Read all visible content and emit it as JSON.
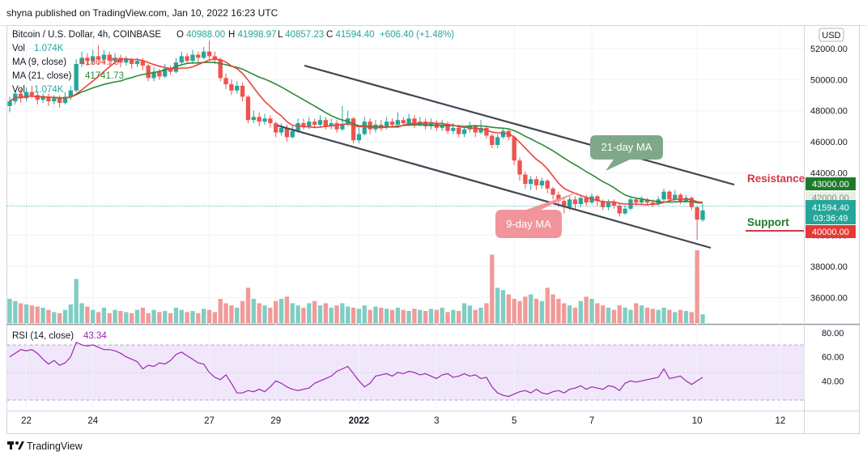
{
  "header": {
    "published": "shyna published on TradingView.com, Jan 10, 2022 16:23 UTC"
  },
  "legend": {
    "symbol": "Bitcoin / U.S. Dollar, 4h, COINBASE",
    "o_label": "O",
    "o_value": "40988.00",
    "h_label": "H",
    "h_value": "41998.97",
    "l_label": "L",
    "l_value": "40857.23",
    "c_label": "C",
    "c_value": "41594.40",
    "change": "+606.40 (+1.48%)",
    "vol_label": "Vol",
    "vol_value": "1.074K",
    "ma9_label": "MA (9, close)",
    "ma9_value": "41804.70",
    "ma21_label": "MA (21, close)",
    "ma21_value": "41741.73",
    "vol2_label": "Vol",
    "vol2_value": "1.074K"
  },
  "currency_button": "USD",
  "annotations": {
    "ma21": "21-day MA",
    "ma9": "9-day MA",
    "resistance": "Resistance",
    "support": "Support"
  },
  "price_tags": {
    "resistance": "43000.00",
    "ma_tag": "42000.00",
    "last_price": "41594.40",
    "countdown": "03:36:49",
    "support": "40000.00"
  },
  "rsi_legend": {
    "label": "RSI (14, close)",
    "value": "43.34"
  },
  "footer": {
    "brand": "TradingView"
  },
  "colors": {
    "up": "#26a69a",
    "down": "#ef5350",
    "ma9": "#e8453c",
    "ma21": "#2e8b3a",
    "rsi": "#9c27b0",
    "rsi_band": "#f1e7fb",
    "support_text": "#1e7a2b",
    "resistance_text": "#d23a4a"
  },
  "chart_data": {
    "type": "candlestick",
    "timeframe": "4h",
    "x_ticks": [
      "22",
      "24",
      "27",
      "29",
      "2022",
      "3",
      "5",
      "7",
      "10",
      "12"
    ],
    "y_ticks": [
      36000,
      38000,
      40000,
      42000,
      44000,
      46000,
      48000,
      50000,
      52000
    ],
    "ylim": [
      34300,
      53500
    ],
    "candles": [
      {
        "o": 48300,
        "c": 48600,
        "h": 48900,
        "l": 47900
      },
      {
        "o": 48600,
        "c": 49100,
        "h": 49300,
        "l": 48400
      },
      {
        "o": 49100,
        "c": 48800,
        "h": 49400,
        "l": 48500
      },
      {
        "o": 48800,
        "c": 49200,
        "h": 49500,
        "l": 48600
      },
      {
        "o": 49200,
        "c": 49000,
        "h": 49600,
        "l": 48800
      },
      {
        "o": 49000,
        "c": 48700,
        "h": 49200,
        "l": 48400
      },
      {
        "o": 48700,
        "c": 48900,
        "h": 49100,
        "l": 48500
      },
      {
        "o": 48900,
        "c": 48600,
        "h": 49100,
        "l": 48300
      },
      {
        "o": 48600,
        "c": 48800,
        "h": 49000,
        "l": 48400
      },
      {
        "o": 48800,
        "c": 48500,
        "h": 49000,
        "l": 48200
      },
      {
        "o": 48500,
        "c": 48900,
        "h": 49200,
        "l": 48400
      },
      {
        "o": 48900,
        "c": 49300,
        "h": 49600,
        "l": 48700
      },
      {
        "o": 49300,
        "c": 51000,
        "h": 51300,
        "l": 49200
      },
      {
        "o": 51000,
        "c": 51400,
        "h": 51800,
        "l": 50800
      },
      {
        "o": 51400,
        "c": 51200,
        "h": 51700,
        "l": 50900
      },
      {
        "o": 51200,
        "c": 51500,
        "h": 51900,
        "l": 51000
      },
      {
        "o": 51500,
        "c": 51300,
        "h": 52200,
        "l": 51000
      },
      {
        "o": 51300,
        "c": 51600,
        "h": 51900,
        "l": 51000
      },
      {
        "o": 51600,
        "c": 51200,
        "h": 51800,
        "l": 50900
      },
      {
        "o": 51200,
        "c": 51400,
        "h": 51700,
        "l": 51000
      },
      {
        "o": 51400,
        "c": 51100,
        "h": 51600,
        "l": 50800
      },
      {
        "o": 51100,
        "c": 51300,
        "h": 51500,
        "l": 50900
      },
      {
        "o": 51300,
        "c": 51000,
        "h": 51400,
        "l": 50700
      },
      {
        "o": 51000,
        "c": 51200,
        "h": 51400,
        "l": 50800
      },
      {
        "o": 51200,
        "c": 50900,
        "h": 51400,
        "l": 50600
      },
      {
        "o": 50900,
        "c": 50100,
        "h": 51000,
        "l": 49900
      },
      {
        "o": 50100,
        "c": 50500,
        "h": 50800,
        "l": 49900
      },
      {
        "o": 50500,
        "c": 50200,
        "h": 50700,
        "l": 50000
      },
      {
        "o": 50200,
        "c": 50700,
        "h": 51000,
        "l": 50100
      },
      {
        "o": 50700,
        "c": 50500,
        "h": 50900,
        "l": 50300
      },
      {
        "o": 50500,
        "c": 51100,
        "h": 51400,
        "l": 50400
      },
      {
        "o": 51100,
        "c": 51500,
        "h": 51800,
        "l": 50900
      },
      {
        "o": 51500,
        "c": 51200,
        "h": 51700,
        "l": 51000
      },
      {
        "o": 51200,
        "c": 51600,
        "h": 51900,
        "l": 51000
      },
      {
        "o": 51600,
        "c": 51400,
        "h": 51800,
        "l": 51100
      },
      {
        "o": 51400,
        "c": 51800,
        "h": 52100,
        "l": 51300
      },
      {
        "o": 51800,
        "c": 51500,
        "h": 52500,
        "l": 51300
      },
      {
        "o": 51500,
        "c": 51300,
        "h": 51800,
        "l": 51000
      },
      {
        "o": 51300,
        "c": 50100,
        "h": 51400,
        "l": 49900
      },
      {
        "o": 50100,
        "c": 49700,
        "h": 50400,
        "l": 49400
      },
      {
        "o": 49700,
        "c": 49300,
        "h": 50000,
        "l": 49000
      },
      {
        "o": 49300,
        "c": 49600,
        "h": 49900,
        "l": 49100
      },
      {
        "o": 49600,
        "c": 48900,
        "h": 49800,
        "l": 48600
      },
      {
        "o": 48900,
        "c": 47400,
        "h": 49000,
        "l": 47200
      },
      {
        "o": 47400,
        "c": 47600,
        "h": 48000,
        "l": 47200
      },
      {
        "o": 47600,
        "c": 47300,
        "h": 47900,
        "l": 47000
      },
      {
        "o": 47300,
        "c": 47500,
        "h": 47800,
        "l": 47100
      },
      {
        "o": 47500,
        "c": 47200,
        "h": 47700,
        "l": 46900
      },
      {
        "o": 47200,
        "c": 46600,
        "h": 47300,
        "l": 46300
      },
      {
        "o": 46600,
        "c": 46900,
        "h": 47200,
        "l": 46400
      },
      {
        "o": 46900,
        "c": 46300,
        "h": 47100,
        "l": 46000
      },
      {
        "o": 46300,
        "c": 46700,
        "h": 47000,
        "l": 46200
      },
      {
        "o": 46700,
        "c": 47200,
        "h": 47500,
        "l": 46600
      },
      {
        "o": 47200,
        "c": 47000,
        "h": 47500,
        "l": 46800
      },
      {
        "o": 47000,
        "c": 47300,
        "h": 47600,
        "l": 46800
      },
      {
        "o": 47300,
        "c": 47100,
        "h": 47500,
        "l": 46900
      },
      {
        "o": 47100,
        "c": 47400,
        "h": 47700,
        "l": 46900
      },
      {
        "o": 47400,
        "c": 47000,
        "h": 47600,
        "l": 46800
      },
      {
        "o": 47000,
        "c": 47200,
        "h": 47500,
        "l": 46800
      },
      {
        "o": 47200,
        "c": 46800,
        "h": 47400,
        "l": 46600
      },
      {
        "o": 46800,
        "c": 47100,
        "h": 48300,
        "l": 46700
      },
      {
        "o": 47100,
        "c": 47500,
        "h": 48000,
        "l": 47000
      },
      {
        "o": 47500,
        "c": 46100,
        "h": 47600,
        "l": 45900
      },
      {
        "o": 46100,
        "c": 46500,
        "h": 46900,
        "l": 45900
      },
      {
        "o": 46500,
        "c": 47300,
        "h": 47600,
        "l": 46400
      },
      {
        "o": 47300,
        "c": 46800,
        "h": 47500,
        "l": 46500
      },
      {
        "o": 46800,
        "c": 47100,
        "h": 47400,
        "l": 46600
      },
      {
        "o": 47100,
        "c": 46900,
        "h": 47400,
        "l": 46700
      },
      {
        "o": 46900,
        "c": 47300,
        "h": 47600,
        "l": 46800
      },
      {
        "o": 47300,
        "c": 47100,
        "h": 47500,
        "l": 46900
      },
      {
        "o": 47100,
        "c": 47400,
        "h": 47900,
        "l": 46900
      },
      {
        "o": 47400,
        "c": 47200,
        "h": 47600,
        "l": 47000
      },
      {
        "o": 47200,
        "c": 47500,
        "h": 47800,
        "l": 47000
      },
      {
        "o": 47500,
        "c": 47100,
        "h": 47700,
        "l": 46900
      },
      {
        "o": 47100,
        "c": 47300,
        "h": 47600,
        "l": 47000
      },
      {
        "o": 47300,
        "c": 47000,
        "h": 47500,
        "l": 46800
      },
      {
        "o": 47000,
        "c": 47200,
        "h": 47500,
        "l": 46800
      },
      {
        "o": 47200,
        "c": 46900,
        "h": 47400,
        "l": 46700
      },
      {
        "o": 46900,
        "c": 47100,
        "h": 47400,
        "l": 46700
      },
      {
        "o": 47100,
        "c": 46700,
        "h": 47300,
        "l": 46500
      },
      {
        "o": 46700,
        "c": 46900,
        "h": 47200,
        "l": 46500
      },
      {
        "o": 46900,
        "c": 46500,
        "h": 47100,
        "l": 46300
      },
      {
        "o": 46500,
        "c": 46800,
        "h": 47000,
        "l": 46300
      },
      {
        "o": 46800,
        "c": 47000,
        "h": 47300,
        "l": 46600
      },
      {
        "o": 47000,
        "c": 46600,
        "h": 47100,
        "l": 46300
      },
      {
        "o": 46600,
        "c": 46900,
        "h": 47400,
        "l": 46500
      },
      {
        "o": 46900,
        "c": 46400,
        "h": 47000,
        "l": 46200
      },
      {
        "o": 46400,
        "c": 45800,
        "h": 46500,
        "l": 45600
      },
      {
        "o": 45800,
        "c": 46300,
        "h": 46500,
        "l": 45600
      },
      {
        "o": 46300,
        "c": 46700,
        "h": 46900,
        "l": 46200
      },
      {
        "o": 46700,
        "c": 46300,
        "h": 46800,
        "l": 46100
      },
      {
        "o": 46300,
        "c": 44800,
        "h": 46400,
        "l": 44500
      },
      {
        "o": 44800,
        "c": 43900,
        "h": 45000,
        "l": 43500
      },
      {
        "o": 43900,
        "c": 43300,
        "h": 44100,
        "l": 43000
      },
      {
        "o": 43300,
        "c": 43600,
        "h": 43800,
        "l": 42900
      },
      {
        "o": 43600,
        "c": 43200,
        "h": 43800,
        "l": 42900
      },
      {
        "o": 43200,
        "c": 43500,
        "h": 43700,
        "l": 43000
      },
      {
        "o": 43500,
        "c": 43000,
        "h": 43600,
        "l": 42700
      },
      {
        "o": 43000,
        "c": 42600,
        "h": 43100,
        "l": 42300
      },
      {
        "o": 42600,
        "c": 42200,
        "h": 42800,
        "l": 41800
      },
      {
        "o": 42200,
        "c": 41800,
        "h": 42400,
        "l": 41400
      },
      {
        "o": 41800,
        "c": 42300,
        "h": 42500,
        "l": 41600
      },
      {
        "o": 42300,
        "c": 42000,
        "h": 42500,
        "l": 41700
      },
      {
        "o": 42000,
        "c": 42400,
        "h": 42600,
        "l": 41800
      },
      {
        "o": 42400,
        "c": 42100,
        "h": 42600,
        "l": 41900
      },
      {
        "o": 42100,
        "c": 42500,
        "h": 42700,
        "l": 42000
      },
      {
        "o": 42500,
        "c": 42200,
        "h": 42600,
        "l": 41900
      },
      {
        "o": 42200,
        "c": 41800,
        "h": 42300,
        "l": 41600
      },
      {
        "o": 41800,
        "c": 42100,
        "h": 42300,
        "l": 41600
      },
      {
        "o": 42100,
        "c": 41900,
        "h": 42300,
        "l": 41700
      },
      {
        "o": 41900,
        "c": 41400,
        "h": 42000,
        "l": 41200
      },
      {
        "o": 41400,
        "c": 41700,
        "h": 41900,
        "l": 41300
      },
      {
        "o": 41700,
        "c": 42300,
        "h": 42500,
        "l": 41600
      },
      {
        "o": 42300,
        "c": 42100,
        "h": 42400,
        "l": 41900
      },
      {
        "o": 42100,
        "c": 42300,
        "h": 42500,
        "l": 42000
      },
      {
        "o": 42300,
        "c": 42100,
        "h": 42400,
        "l": 41900
      },
      {
        "o": 42100,
        "c": 42000,
        "h": 42300,
        "l": 41800
      },
      {
        "o": 42000,
        "c": 42300,
        "h": 42500,
        "l": 41900
      },
      {
        "o": 42300,
        "c": 42800,
        "h": 43000,
        "l": 42200
      },
      {
        "o": 42800,
        "c": 42300,
        "h": 42900,
        "l": 42100
      },
      {
        "o": 42300,
        "c": 42600,
        "h": 42900,
        "l": 42200
      },
      {
        "o": 42600,
        "c": 42200,
        "h": 42700,
        "l": 42000
      },
      {
        "o": 42200,
        "c": 42400,
        "h": 42600,
        "l": 42100
      },
      {
        "o": 42400,
        "c": 41800,
        "h": 42500,
        "l": 41600
      },
      {
        "o": 41800,
        "c": 41000,
        "h": 41900,
        "l": 39700
      },
      {
        "o": 40988,
        "c": 41594,
        "h": 41999,
        "l": 40857
      }
    ],
    "volume": [
      22,
      20,
      18,
      17,
      16,
      15,
      14,
      12,
      10,
      9,
      12,
      17,
      40,
      18,
      15,
      12,
      10,
      14,
      9,
      12,
      11,
      10,
      9,
      12,
      14,
      9,
      12,
      10,
      11,
      9,
      14,
      12,
      10,
      11,
      9,
      13,
      12,
      10,
      22,
      18,
      16,
      14,
      20,
      32,
      22,
      18,
      16,
      14,
      20,
      22,
      24,
      18,
      16,
      14,
      18,
      20,
      16,
      18,
      14,
      16,
      18,
      15,
      14,
      13,
      16,
      12,
      15,
      14,
      13,
      12,
      14,
      12,
      11,
      13,
      12,
      11,
      13,
      12,
      14,
      10,
      12,
      11,
      18,
      16,
      12,
      14,
      18,
      62,
      32,
      30,
      26,
      22,
      20,
      24,
      26,
      22,
      20,
      32,
      26,
      22,
      18,
      16,
      14,
      20,
      24,
      22,
      18,
      16,
      14,
      12,
      16,
      14,
      12,
      18,
      16,
      14,
      13,
      12,
      14,
      12,
      10,
      12,
      11,
      10,
      66,
      8
    ],
    "rsi": [
      60,
      63,
      66,
      65,
      66,
      63,
      58,
      54,
      57,
      53,
      55,
      60,
      72,
      70,
      69,
      70,
      68,
      66,
      66,
      65,
      63,
      60,
      58,
      56,
      50,
      53,
      52,
      55,
      54,
      57,
      62,
      64,
      61,
      58,
      55,
      54,
      47,
      43,
      41,
      45,
      38,
      30,
      30,
      32,
      31,
      33,
      31,
      35,
      40,
      38,
      35,
      33,
      32,
      33,
      34,
      38,
      40,
      42,
      44,
      48,
      50,
      52,
      46,
      40,
      35,
      38,
      44,
      45,
      46,
      44,
      47,
      46,
      48,
      47,
      45,
      46,
      44,
      42,
      45,
      46,
      43,
      44,
      46,
      44,
      45,
      42,
      43,
      35,
      30,
      28,
      27,
      29,
      31,
      32,
      30,
      33,
      30,
      29,
      31,
      32,
      30,
      33,
      34,
      36,
      33,
      35,
      34,
      33,
      36,
      35,
      32,
      38,
      40,
      39,
      40,
      41,
      42,
      43,
      50,
      42,
      43,
      44,
      40,
      37,
      40,
      43
    ]
  }
}
